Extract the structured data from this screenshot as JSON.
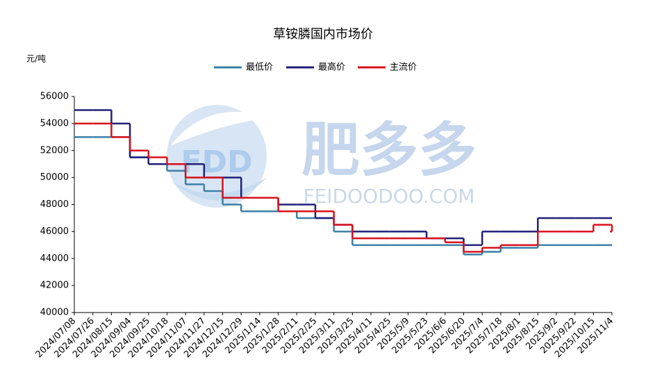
{
  "chart_data": {
    "type": "step-line",
    "title": "草铵膦国内市场价",
    "y_label": "元/吨",
    "categories": [
      "2024/07/08",
      "2024/07/26",
      "2024/08/15",
      "2024/09/04",
      "2024/09/25",
      "2024/10/18",
      "2024/11/07",
      "2024/11/27",
      "2024/12/15",
      "2024/12/29",
      "2025/1/14",
      "2025/1/28",
      "2025/2/11",
      "2025/2/25",
      "2025/3/11",
      "2025/3/25",
      "2025/4/11",
      "2025/4/25",
      "2025/5/9",
      "2025/5/23",
      "2025/6/6",
      "2025/6/20",
      "2025/7/4",
      "2025/7/18",
      "2025/8/1",
      "2025/8/15",
      "2025/9/2",
      "2025/9/22",
      "2025/10/15",
      "2025/11/4"
    ],
    "series": [
      {
        "name": "最低价",
        "color": "#3b7fa6",
        "values": [
          53000,
          53000,
          53000,
          51500,
          51000,
          50500,
          49500,
          49000,
          48000,
          47500,
          47500,
          47500,
          47000,
          47000,
          46000,
          45000,
          45000,
          45000,
          45000,
          45000,
          45000,
          44300,
          44500,
          44800,
          44800,
          45000,
          45000,
          45000,
          45000,
          45000
        ]
      },
      {
        "name": "最高价",
        "color": "#1f1f7a",
        "values": [
          55000,
          55000,
          54000,
          51500,
          51000,
          51000,
          51000,
          50000,
          50000,
          48500,
          48500,
          48000,
          48000,
          47000,
          46500,
          46000,
          46000,
          46000,
          46000,
          45500,
          45500,
          45000,
          46000,
          46000,
          46000,
          47000,
          47000,
          47000,
          47000,
          47000
        ]
      },
      {
        "name": "主流价",
        "color": "#d8101c",
        "values": [
          54000,
          54000,
          53000,
          52000,
          51500,
          51000,
          50000,
          50000,
          48500,
          48500,
          48500,
          47500,
          47500,
          47500,
          46500,
          45500,
          45500,
          45500,
          45500,
          45500,
          45200,
          44500,
          44800,
          45000,
          45000,
          46000,
          46000,
          46000,
          46500,
          46000
        ]
      }
    ],
    "ylim": [
      40000,
      56000
    ],
    "yticks": [
      40000,
      42000,
      44000,
      46000,
      48000,
      50000,
      52000,
      54000,
      56000
    ],
    "legend": "top"
  },
  "watermark": {
    "logo": "FDD",
    "brand": "肥多多",
    "site": "FEIDOODOO.COM"
  }
}
